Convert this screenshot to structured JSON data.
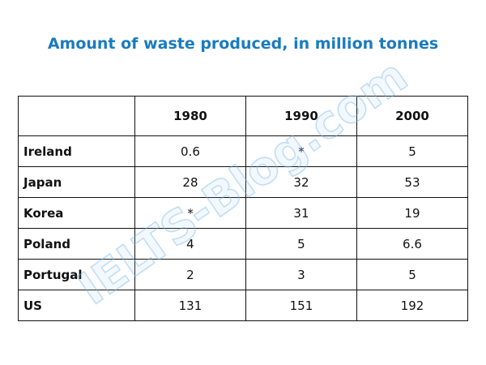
{
  "title": "Amount of waste produced, in million tonnes",
  "watermark": "IELTS-Blog.com",
  "table": {
    "header": [
      "",
      "1980",
      "1990",
      "2000"
    ],
    "rows": [
      [
        "Ireland",
        0.6,
        "*",
        5
      ],
      [
        "Japan",
        28,
        32,
        53
      ],
      [
        "Korea",
        "*",
        31,
        19
      ],
      [
        "Poland",
        4,
        5,
        6.6
      ],
      [
        "Portugal",
        2,
        3,
        5
      ],
      [
        "US",
        131,
        151,
        192
      ]
    ]
  }
}
